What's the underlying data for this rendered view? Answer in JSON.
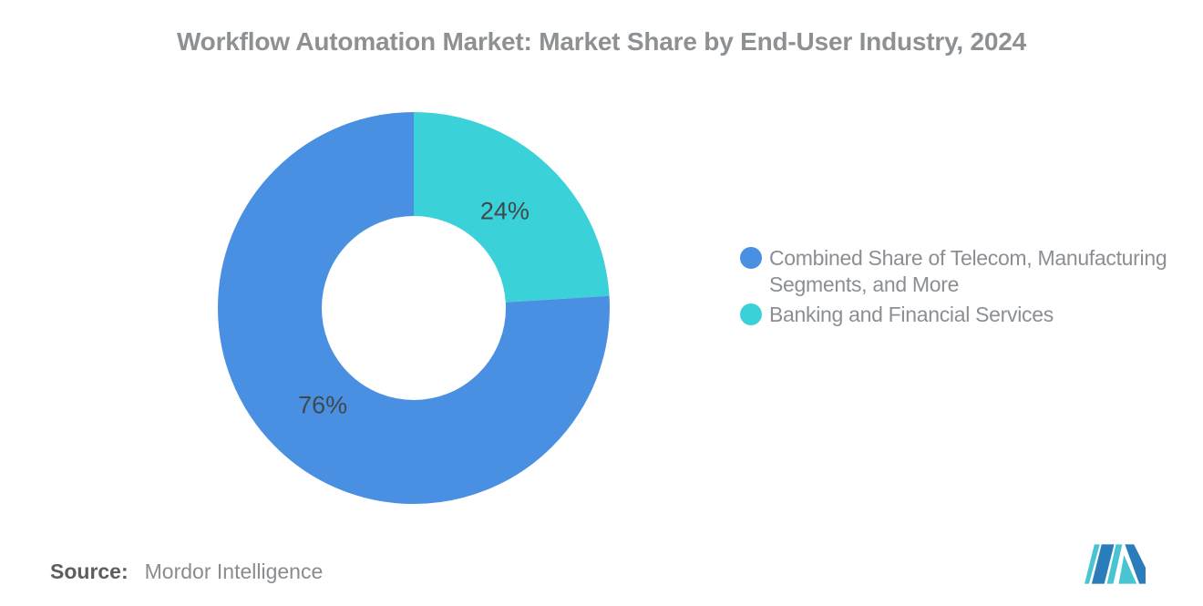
{
  "header": {
    "title": "Workflow Automation Market: Market Share by End-User Industry, 2024"
  },
  "chart_data": {
    "type": "pie",
    "variant": "donut",
    "title": "Workflow Automation Market: Market Share by End-User Industry, 2024",
    "categories": [
      "Combined Share of Telecom, Manufacturing Segments, and More",
      "Banking and Financial Services"
    ],
    "values": [
      76,
      24
    ],
    "slices_draw_order": [
      {
        "label": "Banking and Financial Services",
        "value": 24,
        "data_label": "24%",
        "color": "#3bd1d8"
      },
      {
        "label": "Combined Share of Telecom, Manufacturing Segments, and More",
        "value": 76,
        "data_label": "76%",
        "color": "#4a90e2"
      }
    ],
    "start_angle_deg": 0,
    "direction": "clockwise",
    "inner_radius_ratio": 0.47,
    "data_label_color": "#40484d",
    "legend_position": "right",
    "background": "#ffffff"
  },
  "legend": {
    "items": [
      {
        "label": "Combined Share of Telecom, Manufacturing Segments, and More",
        "color": "#4a90e2"
      },
      {
        "label": "Banking and Financial Services",
        "color": "#3bd1d8"
      }
    ]
  },
  "footer": {
    "source_label": "Source:",
    "source_value": "Mordor Intelligence"
  },
  "logo": {
    "name": "mordor-intelligence-logo",
    "blue": "#2b7cba",
    "teal": "#49c5d2"
  }
}
